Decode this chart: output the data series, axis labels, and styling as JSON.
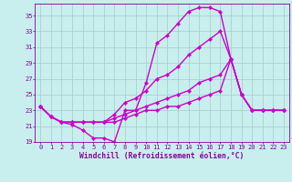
{
  "xlabel": "Windchill (Refroidissement éolien,°C)",
  "xlim": [
    -0.5,
    23.5
  ],
  "ylim": [
    19,
    36.5
  ],
  "yticks": [
    19,
    21,
    23,
    25,
    27,
    29,
    31,
    33,
    35
  ],
  "xticks": [
    0,
    1,
    2,
    3,
    4,
    5,
    6,
    7,
    8,
    9,
    10,
    11,
    12,
    13,
    14,
    15,
    16,
    17,
    18,
    19,
    20,
    21,
    22,
    23
  ],
  "background_color": "#c8eeee",
  "grid_color": "#a0cccc",
  "line_color": "#cc00cc",
  "line_width": 1.0,
  "marker_size": 2.2,
  "font_color": "#880099",
  "tick_fontsize": 5.0,
  "xlabel_fontsize": 5.8,
  "curves": [
    {
      "x": [
        0,
        1,
        2,
        3,
        4,
        5,
        6,
        7,
        8,
        9,
        10,
        11,
        12,
        13,
        14,
        15,
        16,
        17,
        18,
        19,
        20,
        21,
        22,
        23
      ],
      "y": [
        23.5,
        22.2,
        21.5,
        21.2,
        20.5,
        19.5,
        19.5,
        19.0,
        23.0,
        23.0,
        26.5,
        31.5,
        32.5,
        34.0,
        35.5,
        36.0,
        36.0,
        35.5,
        29.5,
        25.0,
        23.0,
        23.0,
        23.0,
        23.0
      ]
    },
    {
      "x": [
        0,
        1,
        2,
        3,
        4,
        5,
        6,
        7,
        8,
        9,
        10,
        11,
        12,
        13,
        14,
        15,
        16,
        17,
        18,
        19,
        20,
        21,
        22,
        23
      ],
      "y": [
        23.5,
        22.2,
        21.5,
        21.5,
        21.5,
        21.5,
        21.5,
        22.5,
        24.0,
        24.5,
        25.5,
        27.0,
        27.5,
        28.5,
        30.0,
        31.0,
        32.0,
        33.0,
        29.5,
        25.0,
        23.0,
        23.0,
        23.0,
        23.0
      ]
    },
    {
      "x": [
        0,
        1,
        2,
        3,
        4,
        5,
        6,
        7,
        8,
        9,
        10,
        11,
        12,
        13,
        14,
        15,
        16,
        17,
        18,
        19,
        20,
        21,
        22,
        23
      ],
      "y": [
        23.5,
        22.2,
        21.5,
        21.5,
        21.5,
        21.5,
        21.5,
        22.0,
        22.5,
        23.0,
        23.5,
        24.0,
        24.5,
        25.0,
        25.5,
        26.5,
        27.0,
        27.5,
        29.5,
        25.0,
        23.0,
        23.0,
        23.0,
        23.0
      ]
    },
    {
      "x": [
        0,
        1,
        2,
        3,
        4,
        5,
        6,
        7,
        8,
        9,
        10,
        11,
        12,
        13,
        14,
        15,
        16,
        17,
        18,
        19,
        20,
        21,
        22,
        23
      ],
      "y": [
        23.5,
        22.2,
        21.5,
        21.5,
        21.5,
        21.5,
        21.5,
        21.5,
        22.0,
        22.5,
        23.0,
        23.0,
        23.5,
        23.5,
        24.0,
        24.5,
        25.0,
        25.5,
        29.5,
        25.0,
        23.0,
        23.0,
        23.0,
        23.0
      ]
    }
  ]
}
